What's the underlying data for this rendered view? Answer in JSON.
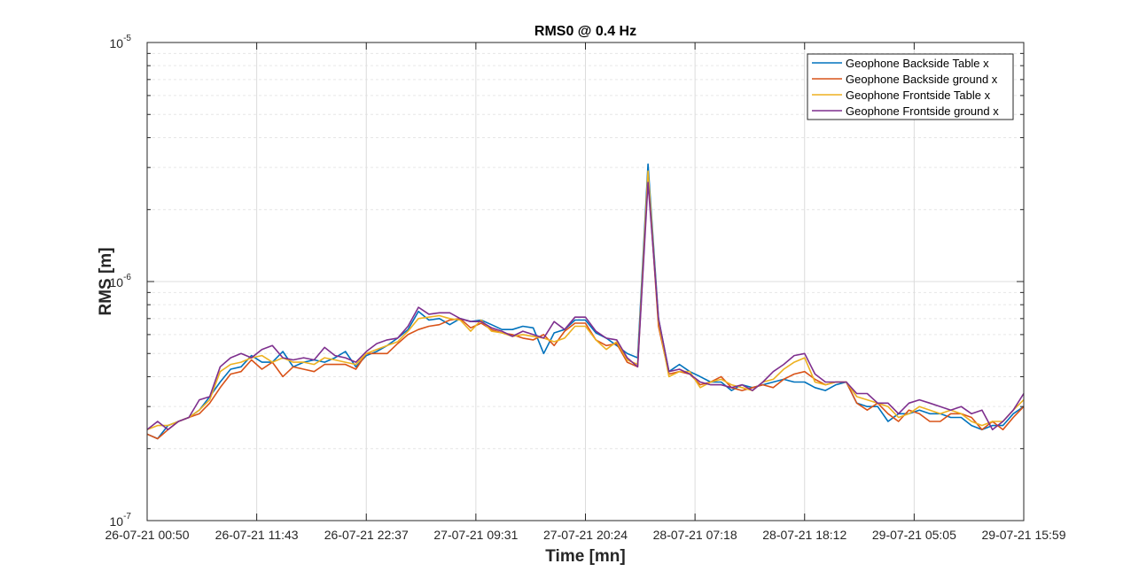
{
  "chart_data": {
    "type": "line",
    "title": "RMS0 @ 0.4 Hz",
    "xlabel": "Time [mn]",
    "ylabel": "RMS [m]",
    "yscale": "log",
    "ylim": [
      1e-07,
      1e-05
    ],
    "grid": true,
    "legend_position": "top-right",
    "x_ticks": [
      "26-07-21 00:50",
      "26-07-21 11:43",
      "26-07-21 22:37",
      "27-07-21 09:31",
      "27-07-21 20:24",
      "28-07-21 07:18",
      "28-07-21 18:12",
      "29-07-21 05:05",
      "29-07-21 15:59"
    ],
    "y_ticks": [
      {
        "value": 1e-07,
        "base": "10",
        "exp": "-7"
      },
      {
        "value": 1e-06,
        "base": "10",
        "exp": "-6"
      },
      {
        "value": 1e-05,
        "base": "10",
        "exp": "-5"
      }
    ],
    "series": [
      {
        "name": "Geophone Backside Table x",
        "color": "#0072BD",
        "values": [
          2.3e-07,
          2.2e-07,
          2.5e-07,
          2.6e-07,
          2.7e-07,
          2.9e-07,
          3.3e-07,
          3.8e-07,
          4.3e-07,
          4.4e-07,
          4.9e-07,
          4.6e-07,
          4.6e-07,
          5.1e-07,
          4.4e-07,
          4.6e-07,
          4.7e-07,
          4.6e-07,
          4.8e-07,
          5.1e-07,
          4.4e-07,
          4.9e-07,
          5.1e-07,
          5.4e-07,
          5.8e-07,
          6.3e-07,
          7.5e-07,
          6.9e-07,
          7e-07,
          6.6e-07,
          7e-07,
          6.8e-07,
          6.9e-07,
          6.6e-07,
          6.3e-07,
          6.3e-07,
          6.5e-07,
          6.4e-07,
          5e-07,
          6.1e-07,
          6.3e-07,
          6.9e-07,
          6.9e-07,
          6.1e-07,
          5.8e-07,
          5.4e-07,
          5e-07,
          4.8e-07,
          3.1e-06,
          7e-07,
          4.2e-07,
          4.5e-07,
          4.2e-07,
          4e-07,
          3.8e-07,
          3.8e-07,
          3.5e-07,
          3.7e-07,
          3.6e-07,
          3.7e-07,
          3.8e-07,
          3.9e-07,
          3.8e-07,
          3.8e-07,
          3.6e-07,
          3.5e-07,
          3.7e-07,
          3.8e-07,
          3.1e-07,
          3e-07,
          3e-07,
          2.6e-07,
          2.8e-07,
          2.8e-07,
          2.9e-07,
          2.8e-07,
          2.8e-07,
          2.7e-07,
          2.7e-07,
          2.5e-07,
          2.4e-07,
          2.5e-07,
          2.5e-07,
          2.8e-07,
          3e-07
        ]
      },
      {
        "name": "Geophone Backside ground x",
        "color": "#D95319",
        "values": [
          2.3e-07,
          2.2e-07,
          2.4e-07,
          2.6e-07,
          2.7e-07,
          2.8e-07,
          3.1e-07,
          3.6e-07,
          4.1e-07,
          4.2e-07,
          4.7e-07,
          4.3e-07,
          4.6e-07,
          4e-07,
          4.4e-07,
          4.3e-07,
          4.2e-07,
          4.5e-07,
          4.5e-07,
          4.5e-07,
          4.3e-07,
          5e-07,
          5e-07,
          5e-07,
          5.5e-07,
          6e-07,
          6.3e-07,
          6.5e-07,
          6.6e-07,
          6.9e-07,
          7e-07,
          6.4e-07,
          6.7e-07,
          6.3e-07,
          6.1e-07,
          6e-07,
          5.8e-07,
          5.7e-07,
          6e-07,
          5.4e-07,
          6.2e-07,
          6.7e-07,
          6.7e-07,
          5.7e-07,
          5.4e-07,
          5.5e-07,
          4.6e-07,
          4.4e-07,
          2.8e-06,
          6.5e-07,
          4.1e-07,
          4.2e-07,
          4.1e-07,
          3.7e-07,
          3.8e-07,
          4e-07,
          3.6e-07,
          3.5e-07,
          3.6e-07,
          3.7e-07,
          3.6e-07,
          3.9e-07,
          4.1e-07,
          4.2e-07,
          3.9e-07,
          3.7e-07,
          3.8e-07,
          3.8e-07,
          3.1e-07,
          2.9e-07,
          3.1e-07,
          2.8e-07,
          2.6e-07,
          2.9e-07,
          2.8e-07,
          2.6e-07,
          2.6e-07,
          2.8e-07,
          2.8e-07,
          2.7e-07,
          2.4e-07,
          2.6e-07,
          2.4e-07,
          2.7e-07,
          3e-07
        ]
      },
      {
        "name": "Geophone Frontside Table x",
        "color": "#EDB120",
        "values": [
          2.4e-07,
          2.5e-07,
          2.5e-07,
          2.6e-07,
          2.7e-07,
          2.9e-07,
          3.2e-07,
          4.2e-07,
          4.5e-07,
          4.6e-07,
          4.8e-07,
          4.9e-07,
          4.6e-07,
          4.8e-07,
          4.6e-07,
          4.6e-07,
          4.5e-07,
          4.8e-07,
          4.7e-07,
          4.6e-07,
          4.5e-07,
          5e-07,
          5.2e-07,
          5.4e-07,
          5.6e-07,
          6.2e-07,
          7e-07,
          7.1e-07,
          7.2e-07,
          7e-07,
          6.9e-07,
          6.2e-07,
          6.9e-07,
          6.2e-07,
          6.1e-07,
          5.9e-07,
          6e-07,
          5.9e-07,
          5.8e-07,
          5.6e-07,
          5.8e-07,
          6.5e-07,
          6.5e-07,
          5.7e-07,
          5.2e-07,
          5.6e-07,
          4.7e-07,
          4.5e-07,
          2.9e-06,
          6.8e-07,
          4e-07,
          4.2e-07,
          4.2e-07,
          3.6e-07,
          3.8e-07,
          3.9e-07,
          3.7e-07,
          3.6e-07,
          3.5e-07,
          3.8e-07,
          3.9e-07,
          4.3e-07,
          4.6e-07,
          4.8e-07,
          3.8e-07,
          3.7e-07,
          3.8e-07,
          3.8e-07,
          3.3e-07,
          3.2e-07,
          3.1e-07,
          3e-07,
          2.7e-07,
          2.8e-07,
          3e-07,
          2.9e-07,
          2.8e-07,
          2.9e-07,
          2.8e-07,
          2.6e-07,
          2.5e-07,
          2.6e-07,
          2.6e-07,
          2.9e-07,
          3.2e-07
        ]
      },
      {
        "name": "Geophone Frontside ground x",
        "color": "#7E2F8E",
        "values": [
          2.4e-07,
          2.6e-07,
          2.4e-07,
          2.6e-07,
          2.7e-07,
          3.2e-07,
          3.3e-07,
          4.4e-07,
          4.8e-07,
          5e-07,
          4.8e-07,
          5.2e-07,
          5.4e-07,
          4.8e-07,
          4.7e-07,
          4.8e-07,
          4.7e-07,
          5.3e-07,
          4.9e-07,
          4.8e-07,
          4.6e-07,
          5.1e-07,
          5.5e-07,
          5.7e-07,
          5.8e-07,
          6.5e-07,
          7.8e-07,
          7.3e-07,
          7.4e-07,
          7.4e-07,
          7e-07,
          6.8e-07,
          6.8e-07,
          6.4e-07,
          6.2e-07,
          5.9e-07,
          6.2e-07,
          6e-07,
          5.8e-07,
          6.8e-07,
          6.3e-07,
          7.1e-07,
          7.1e-07,
          6.2e-07,
          5.8e-07,
          5.7e-07,
          4.8e-07,
          4.4e-07,
          2.6e-06,
          7e-07,
          4.2e-07,
          4.3e-07,
          4.1e-07,
          3.8e-07,
          3.7e-07,
          3.7e-07,
          3.6e-07,
          3.7e-07,
          3.5e-07,
          3.8e-07,
          4.2e-07,
          4.5e-07,
          4.9e-07,
          5e-07,
          4.1e-07,
          3.8e-07,
          3.8e-07,
          3.8e-07,
          3.4e-07,
          3.4e-07,
          3.1e-07,
          3.1e-07,
          2.8e-07,
          3.1e-07,
          3.2e-07,
          3.1e-07,
          3e-07,
          2.9e-07,
          3e-07,
          2.8e-07,
          2.9e-07,
          2.4e-07,
          2.6e-07,
          2.9e-07,
          3.4e-07
        ]
      }
    ]
  }
}
